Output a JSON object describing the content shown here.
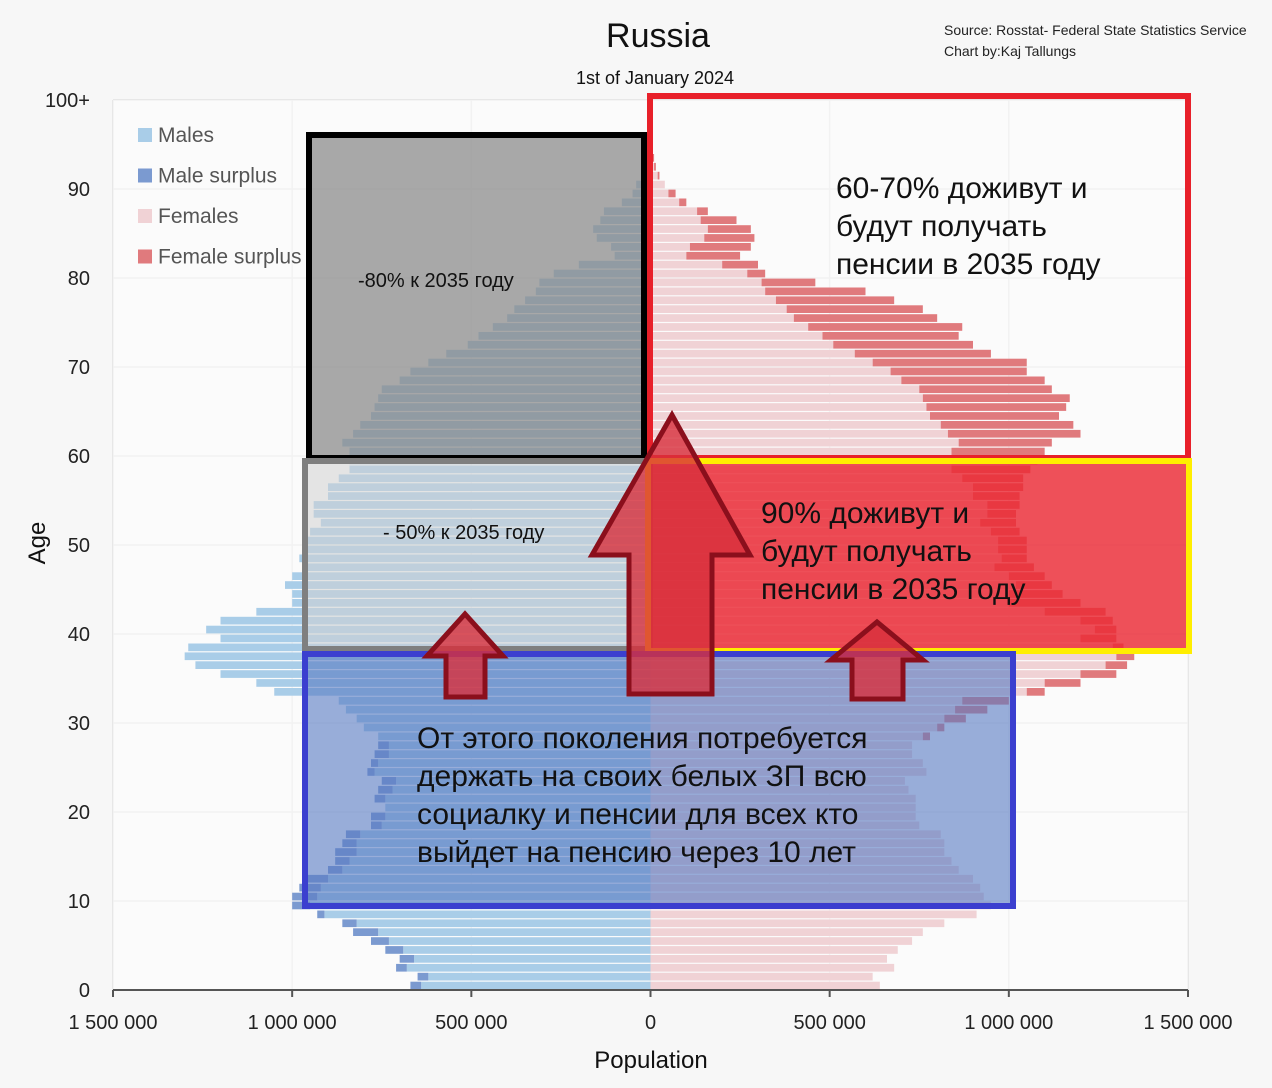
{
  "chart_data": {
    "type": "bar",
    "title": "Russia",
    "subtitle": "1st of January 2024",
    "source": "Source: Rosstat- Federal State Statistics Service",
    "credit": "Chart by:Kaj Tallungs",
    "xlabel": "Population",
    "ylabel": "Age",
    "xlim": [
      -1500000,
      1500000
    ],
    "ylim": [
      0,
      100
    ],
    "x_ticks": [
      -1500000,
      -1000000,
      -500000,
      0,
      500000,
      1000000,
      1500000
    ],
    "x_tick_labels": [
      "1 500 000",
      "1 000 000",
      "500 000",
      "0",
      "500 000",
      "1 000 000",
      "1 500 000"
    ],
    "y_ticks": [
      0,
      10,
      20,
      30,
      40,
      50,
      60,
      70,
      80,
      90,
      100
    ],
    "y_tick_labels": [
      "0",
      "10",
      "20",
      "30",
      "40",
      "50",
      "60",
      "70",
      "80",
      "90",
      "100+"
    ],
    "grid": true,
    "legend_position": "top-left",
    "legend": [
      {
        "label": "Males",
        "color": "#a9cde8"
      },
      {
        "label": "Male surplus",
        "color": "#7b9ad0"
      },
      {
        "label": "Females",
        "color": "#f0d2d5"
      },
      {
        "label": "Female surplus",
        "color": "#e07a7d"
      }
    ],
    "ages": [
      0,
      1,
      2,
      3,
      4,
      5,
      6,
      7,
      8,
      9,
      10,
      11,
      12,
      13,
      14,
      15,
      16,
      17,
      18,
      19,
      20,
      21,
      22,
      23,
      24,
      25,
      26,
      27,
      28,
      29,
      30,
      31,
      32,
      33,
      34,
      35,
      36,
      37,
      38,
      39,
      40,
      41,
      42,
      43,
      44,
      45,
      46,
      47,
      48,
      49,
      50,
      51,
      52,
      53,
      54,
      55,
      56,
      57,
      58,
      59,
      60,
      61,
      62,
      63,
      64,
      65,
      66,
      67,
      68,
      69,
      70,
      71,
      72,
      73,
      74,
      75,
      76,
      77,
      78,
      79,
      80,
      81,
      82,
      83,
      84,
      85,
      86,
      87,
      88,
      89,
      90,
      91,
      92,
      93,
      94,
      95,
      96,
      97,
      98,
      99
    ],
    "males": [
      670000,
      650000,
      710000,
      700000,
      740000,
      780000,
      830000,
      860000,
      930000,
      1000000,
      1000000,
      980000,
      970000,
      900000,
      880000,
      880000,
      860000,
      850000,
      780000,
      780000,
      740000,
      770000,
      760000,
      750000,
      790000,
      780000,
      770000,
      760000,
      760000,
      800000,
      820000,
      850000,
      870000,
      1050000,
      1100000,
      1200000,
      1270000,
      1300000,
      1290000,
      1200000,
      1240000,
      1200000,
      1100000,
      1000000,
      1000000,
      1020000,
      1000000,
      960000,
      980000,
      970000,
      970000,
      950000,
      920000,
      940000,
      940000,
      900000,
      900000,
      870000,
      840000,
      840000,
      840000,
      860000,
      830000,
      810000,
      780000,
      770000,
      760000,
      750000,
      700000,
      670000,
      620000,
      570000,
      510000,
      480000,
      440000,
      400000,
      380000,
      350000,
      320000,
      310000,
      270000,
      200000,
      100000,
      110000,
      150000,
      160000,
      140000,
      130000,
      80000,
      50000,
      40000,
      20000,
      10000,
      5000,
      3000,
      2000,
      1500,
      1000,
      800,
      500
    ],
    "females": [
      640000,
      620000,
      680000,
      660000,
      690000,
      730000,
      760000,
      820000,
      910000,
      950000,
      930000,
      920000,
      900000,
      860000,
      840000,
      820000,
      820000,
      810000,
      750000,
      740000,
      740000,
      740000,
      720000,
      710000,
      770000,
      760000,
      730000,
      730000,
      780000,
      820000,
      880000,
      940000,
      1000000,
      1100000,
      1200000,
      1300000,
      1330000,
      1350000,
      1320000,
      1300000,
      1300000,
      1290000,
      1270000,
      1200000,
      1150000,
      1120000,
      1100000,
      1070000,
      1050000,
      1050000,
      1050000,
      1030000,
      1020000,
      1020000,
      1030000,
      1030000,
      1040000,
      1040000,
      1060000,
      1080000,
      1100000,
      1120000,
      1200000,
      1180000,
      1140000,
      1160000,
      1170000,
      1120000,
      1100000,
      1050000,
      1050000,
      950000,
      900000,
      860000,
      870000,
      800000,
      760000,
      680000,
      600000,
      460000,
      320000,
      300000,
      250000,
      280000,
      290000,
      280000,
      240000,
      160000,
      100000,
      70000,
      40000,
      25000,
      15000,
      10000,
      6000,
      3000,
      2000,
      1500,
      1000,
      800
    ],
    "annotations": [
      {
        "text": "-80% к 2035 году"
      },
      {
        "text": "- 50% к 2035 году"
      },
      {
        "text": "60-70% доживут и будут получать пенсии в 2035 году"
      },
      {
        "text": "90% доживут и будут получать пенсии в 2035 году"
      },
      {
        "text": "От этого поколения потребуется держать на своих белых ЗП всю социалку и пенсии для всех кто выйдет на пенсию через 10 лет"
      }
    ]
  },
  "notes": {
    "black_box": "-80% к 2035 году",
    "gray_box": "- 50% к 2035 году",
    "red_box": [
      "60-70% доживут и",
      "будут получать",
      "пенсии в 2035 году"
    ],
    "yellow_box": [
      "90% доживут и",
      "будут получать",
      "пенсии в 2035 году"
    ],
    "blue_box": [
      "От этого поколения потребуется",
      "держать на своих белых ЗП всю",
      "социалку и пенсии для всех кто",
      "выйдет на пенсию через 10 лет"
    ]
  },
  "colors": {
    "males": "#a9cde8",
    "male_surplus": "#7b9ad0",
    "females": "#f0d2d5",
    "female_surplus": "#e07a7d",
    "arrow_fill": "#d8303c",
    "arrow_stroke": "#8b0f1c"
  }
}
